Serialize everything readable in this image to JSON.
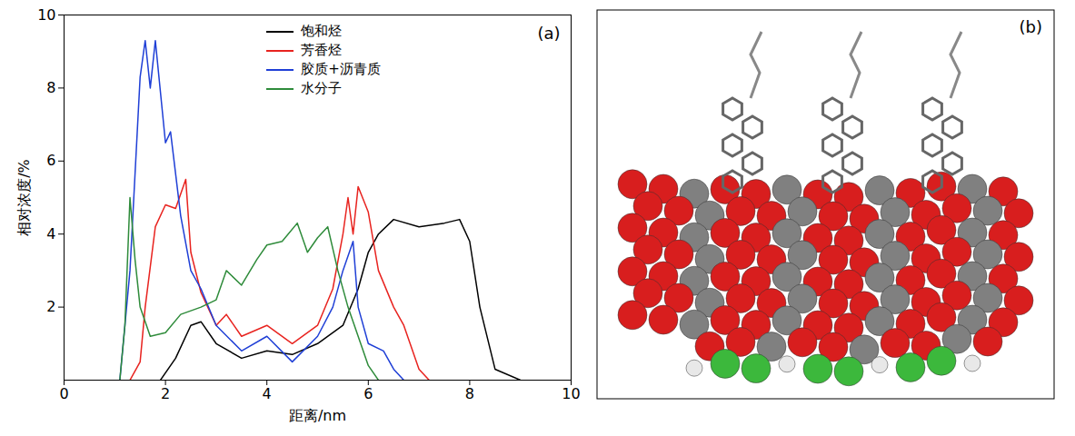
{
  "chart_data": {
    "type": "line",
    "xlabel": "距离/nm",
    "ylabel": "相对浓度/%",
    "annotations": [
      "(a)"
    ],
    "xlim": [
      0,
      10
    ],
    "xticks": [
      0,
      2,
      4,
      6,
      8,
      10
    ],
    "ylim": [
      0,
      10
    ],
    "yticks": [
      2,
      4,
      6,
      8,
      10
    ],
    "legend": "top",
    "grid": false,
    "series": [
      {
        "name": "饱和烃",
        "color": "#000000",
        "x": [
          1.9,
          2.2,
          2.5,
          2.7,
          3.0,
          3.5,
          4.0,
          4.5,
          5.0,
          5.5,
          5.8,
          6.0,
          6.2,
          6.5,
          7.0,
          7.5,
          7.8,
          8.0,
          8.2,
          8.5,
          9.0
        ],
        "values": [
          0,
          0.6,
          1.5,
          1.6,
          1.0,
          0.6,
          0.8,
          0.7,
          1.0,
          1.5,
          2.5,
          3.5,
          4.0,
          4.4,
          4.2,
          4.3,
          4.4,
          3.8,
          2.0,
          0.3,
          0
        ]
      },
      {
        "name": "芳香烃",
        "color": "#e8231f",
        "x": [
          1.3,
          1.5,
          1.6,
          1.8,
          2.0,
          2.2,
          2.4,
          2.5,
          2.7,
          3.0,
          3.2,
          3.5,
          4.0,
          4.5,
          5.0,
          5.3,
          5.5,
          5.6,
          5.7,
          5.8,
          6.0,
          6.2,
          6.5,
          6.7,
          7.0,
          7.2
        ],
        "values": [
          0,
          0.5,
          2.0,
          4.2,
          4.8,
          4.7,
          5.5,
          3.5,
          2.4,
          1.5,
          1.8,
          1.2,
          1.5,
          1.0,
          1.5,
          2.5,
          4.0,
          5.0,
          4.0,
          5.3,
          4.6,
          3.0,
          2.0,
          1.5,
          0.3,
          0
        ]
      },
      {
        "name": "胶质+沥青质",
        "color": "#1f3fd6",
        "x": [
          1.1,
          1.3,
          1.5,
          1.6,
          1.7,
          1.8,
          2.0,
          2.1,
          2.3,
          2.5,
          2.7,
          3.0,
          3.5,
          4.0,
          4.5,
          5.0,
          5.3,
          5.5,
          5.7,
          5.8,
          6.0,
          6.3,
          6.5,
          6.7
        ],
        "values": [
          0,
          3.0,
          8.3,
          9.3,
          8.0,
          9.3,
          6.5,
          6.8,
          4.5,
          3.0,
          2.5,
          1.5,
          0.8,
          1.2,
          0.5,
          1.2,
          2.0,
          3.0,
          3.8,
          2.0,
          1.0,
          0.8,
          0.3,
          0
        ]
      },
      {
        "name": "水分子",
        "color": "#2e8b3a",
        "x": [
          1.1,
          1.2,
          1.3,
          1.4,
          1.5,
          1.7,
          2.0,
          2.3,
          2.7,
          3.0,
          3.2,
          3.5,
          3.8,
          4.0,
          4.3,
          4.6,
          4.8,
          5.0,
          5.2,
          5.4,
          5.6,
          5.8,
          6.0,
          6.2
        ],
        "values": [
          0,
          1.5,
          5.0,
          3.3,
          2.0,
          1.2,
          1.3,
          1.8,
          2.0,
          2.2,
          3.0,
          2.6,
          3.3,
          3.7,
          3.8,
          4.3,
          3.5,
          3.9,
          4.2,
          3.0,
          2.0,
          1.2,
          0.4,
          0
        ]
      }
    ]
  },
  "image_panel": {
    "label": "(b)"
  }
}
